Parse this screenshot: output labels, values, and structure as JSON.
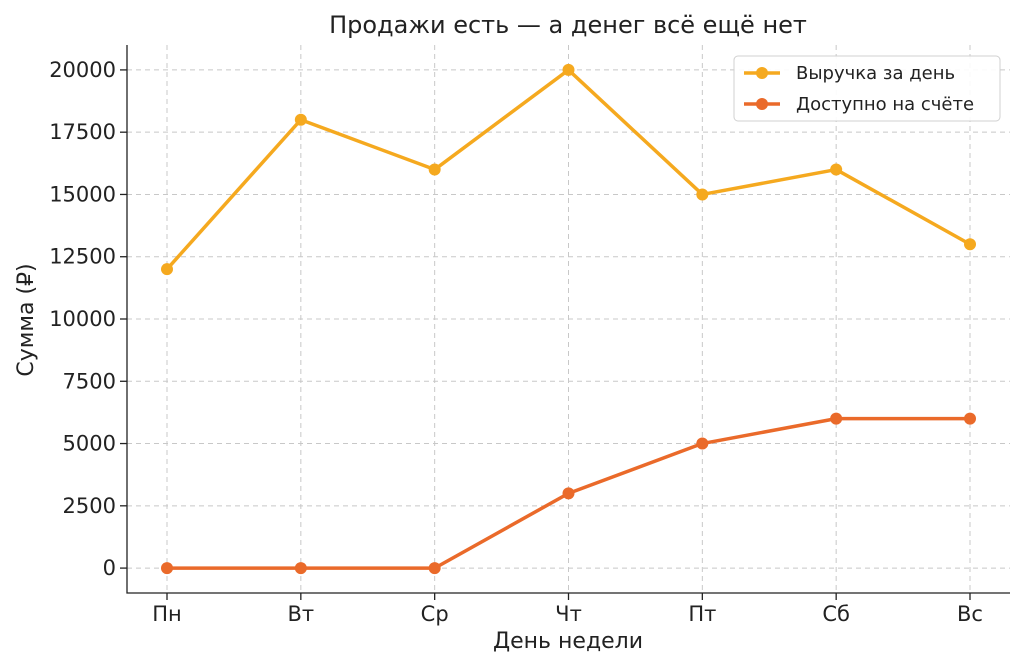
{
  "chart_data": {
    "type": "line",
    "title": "Продажи есть — а денег всё ещё нет",
    "xlabel": "День недели",
    "ylabel": "Сумма (₽)",
    "categories": [
      "Пн",
      "Вт",
      "Ср",
      "Чт",
      "Пт",
      "Сб",
      "Вс"
    ],
    "ylim": [
      -1000,
      21000
    ],
    "yticks": [
      0,
      2500,
      5000,
      7500,
      10000,
      12500,
      15000,
      17500,
      20000
    ],
    "grid": true,
    "legend_position": "top-right",
    "series": [
      {
        "name": "Выручка за день",
        "color": "#F5A91F",
        "values": [
          12000,
          18000,
          16000,
          20000,
          15000,
          16000,
          13000
        ]
      },
      {
        "name": "Доступно на счёте",
        "color": "#EA6A2A",
        "values": [
          0,
          0,
          0,
          3000,
          5000,
          6000,
          6000
        ]
      }
    ]
  }
}
